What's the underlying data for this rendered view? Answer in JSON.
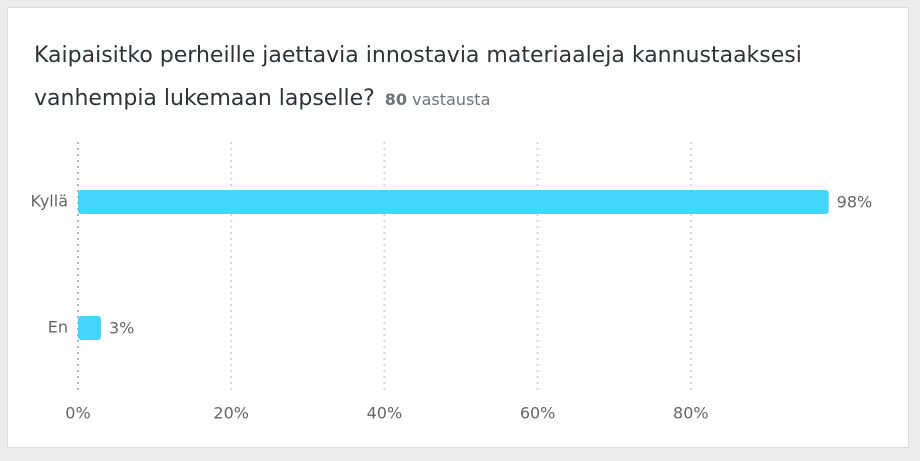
{
  "question": {
    "text": "Kaipaisitko perheille jaettavia innostavia materiaaleja kannustaaksesi vanhempia lukemaan lapselle?",
    "responses_count": "80",
    "responses_label": "vastausta"
  },
  "colors": {
    "bar": "#45d4fb",
    "grid": "#d6d6d6",
    "axis": "#b4b4b4",
    "label": "#666666"
  },
  "chart_data": {
    "type": "bar",
    "orientation": "horizontal",
    "categories": [
      "Kyllä",
      "En"
    ],
    "values": [
      98,
      3
    ],
    "value_labels": [
      "98%",
      "3%"
    ],
    "xlim": [
      0,
      100
    ],
    "xticks": [
      0,
      20,
      40,
      60,
      80
    ],
    "xtick_labels": [
      "0%",
      "20%",
      "40%",
      "60%",
      "80%"
    ],
    "grid": true
  }
}
